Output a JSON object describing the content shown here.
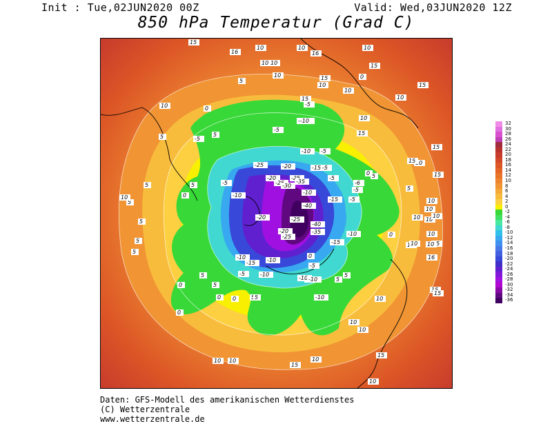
{
  "header": {
    "init": "Init : Tue,02JUN2020 00Z",
    "valid": "Valid: Wed,03JUN2020 12Z",
    "title": "850 hPa Temperatur (Grad C)"
  },
  "colorbar": {
    "labels": [
      "32",
      "30",
      "28",
      "26",
      "24",
      "22",
      "20",
      "18",
      "16",
      "14",
      "12",
      "10",
      "8",
      "6",
      "4",
      "2",
      "0",
      "-2",
      "-4",
      "-6",
      "-8",
      "-10",
      "-12",
      "-14",
      "-16",
      "-18",
      "-20",
      "-22",
      "-24",
      "-26",
      "-28",
      "-30",
      "-32",
      "-34",
      "-36"
    ],
    "colors": [
      "#f08ce8",
      "#e070e0",
      "#d84fd0",
      "#c040b8",
      "#a02c3c",
      "#b8322e",
      "#c83c2c",
      "#d4482a",
      "#dc5626",
      "#e46426",
      "#e87428",
      "#ec8430",
      "#f09434",
      "#f4a838",
      "#f8bc3c",
      "#fcd040",
      "#f8f000",
      "#38d838",
      "#40e060",
      "#48e8a0",
      "#40d8d0",
      "#30c0e8",
      "#38a8f0",
      "#4090f0",
      "#4878e8",
      "#4060e0",
      "#3848d8",
      "#4030c8",
      "#6020d0",
      "#8018d8",
      "#a010e0",
      "#b008d0",
      "#8808a8",
      "#600880",
      "#400060"
    ]
  },
  "map_labels": [
    {
      "t": "15"
    },
    {
      "t": "16"
    },
    {
      "t": "10"
    },
    {
      "t": "10"
    },
    {
      "t": "16"
    },
    {
      "t": "10"
    },
    {
      "t": "10"
    },
    {
      "t": "10"
    },
    {
      "t": "15"
    },
    {
      "t": "15"
    },
    {
      "t": "10"
    },
    {
      "t": "5"
    },
    {
      "t": "5"
    },
    {
      "t": "0"
    },
    {
      "t": "-5"
    },
    {
      "t": "-5"
    },
    {
      "t": "--10"
    },
    {
      "t": "10"
    },
    {
      "t": "0"
    },
    {
      "t": "10"
    },
    {
      "t": "15"
    },
    {
      "t": "10"
    },
    {
      "t": "15"
    },
    {
      "t": "15"
    },
    {
      "t": "10"
    },
    {
      "t": "10"
    },
    {
      "t": "-10"
    },
    {
      "t": "-5"
    },
    {
      "t": "-10"
    },
    {
      "t": "-5"
    },
    {
      "t": "-25"
    },
    {
      "t": "-20"
    },
    {
      "t": "-15"
    },
    {
      "t": "-25"
    },
    {
      "t": "-20"
    },
    {
      "t": "-25"
    },
    {
      "t": "-30"
    },
    {
      "t": "-35"
    },
    {
      "t": "-5"
    },
    {
      "t": "-5"
    },
    {
      "t": "0"
    },
    {
      "t": "5"
    },
    {
      "t": "5"
    },
    {
      "t": "10"
    },
    {
      "t": "0"
    },
    {
      "t": "-5"
    },
    {
      "t": "-5"
    },
    {
      "t": "-15"
    },
    {
      "t": "-10"
    },
    {
      "t": "-20"
    },
    {
      "t": "-40"
    },
    {
      "t": "-25"
    },
    {
      "t": "-40"
    },
    {
      "t": "-35"
    },
    {
      "t": "-10"
    },
    {
      "t": "-15"
    },
    {
      "t": "-25"
    },
    {
      "t": "-20"
    },
    {
      "t": "-15"
    },
    {
      "t": "-10"
    },
    {
      "t": "0"
    },
    {
      "t": "-5"
    },
    {
      "t": "-6"
    },
    {
      "t": "-10"
    },
    {
      "t": "-15"
    },
    {
      "t": "-5"
    },
    {
      "t": "-10"
    },
    {
      "t": "5"
    },
    {
      "t": "0"
    },
    {
      "t": "5"
    },
    {
      "t": "10"
    },
    {
      "t": "10"
    },
    {
      "t": "10"
    },
    {
      "t": "15"
    },
    {
      "t": "15"
    },
    {
      "t": "10"
    },
    {
      "t": "10"
    },
    {
      "t": "10"
    },
    {
      "t": "5"
    },
    {
      "t": "5"
    },
    {
      "t": "10"
    },
    {
      "t": "15"
    },
    {
      "t": "-10"
    },
    {
      "t": "-5"
    },
    {
      "t": "5"
    },
    {
      "t": "0"
    },
    {
      "t": "5"
    },
    {
      "t": "0"
    },
    {
      "t": "0"
    },
    {
      "t": "5"
    },
    {
      "t": "5"
    },
    {
      "t": "0"
    },
    {
      "t": "5"
    },
    {
      "t": "5"
    },
    {
      "t": "10"
    },
    {
      "t": "10"
    },
    {
      "t": "15"
    },
    {
      "t": "15"
    },
    {
      "t": "15"
    },
    {
      "t": "15"
    },
    {
      "t": "16"
    },
    {
      "t": "10"
    },
    {
      "t": "10"
    },
    {
      "t": "10"
    },
    {
      "t": "5"
    },
    {
      "t": "5"
    },
    {
      "t": "5"
    },
    {
      "t": "10"
    },
    {
      "t": "10"
    },
    {
      "t": "10"
    },
    {
      "t": "10"
    },
    {
      "t": "-10"
    },
    {
      "t": "-5"
    },
    {
      "t": "-10"
    },
    {
      "t": "10"
    },
    {
      "t": "15"
    }
  ],
  "footer": {
    "line1": "Daten: GFS-Modell des amerikanischen Wetterdienstes",
    "line2": "(C) Wetterzentrale",
    "line3": "www.wetterzentrale.de"
  }
}
